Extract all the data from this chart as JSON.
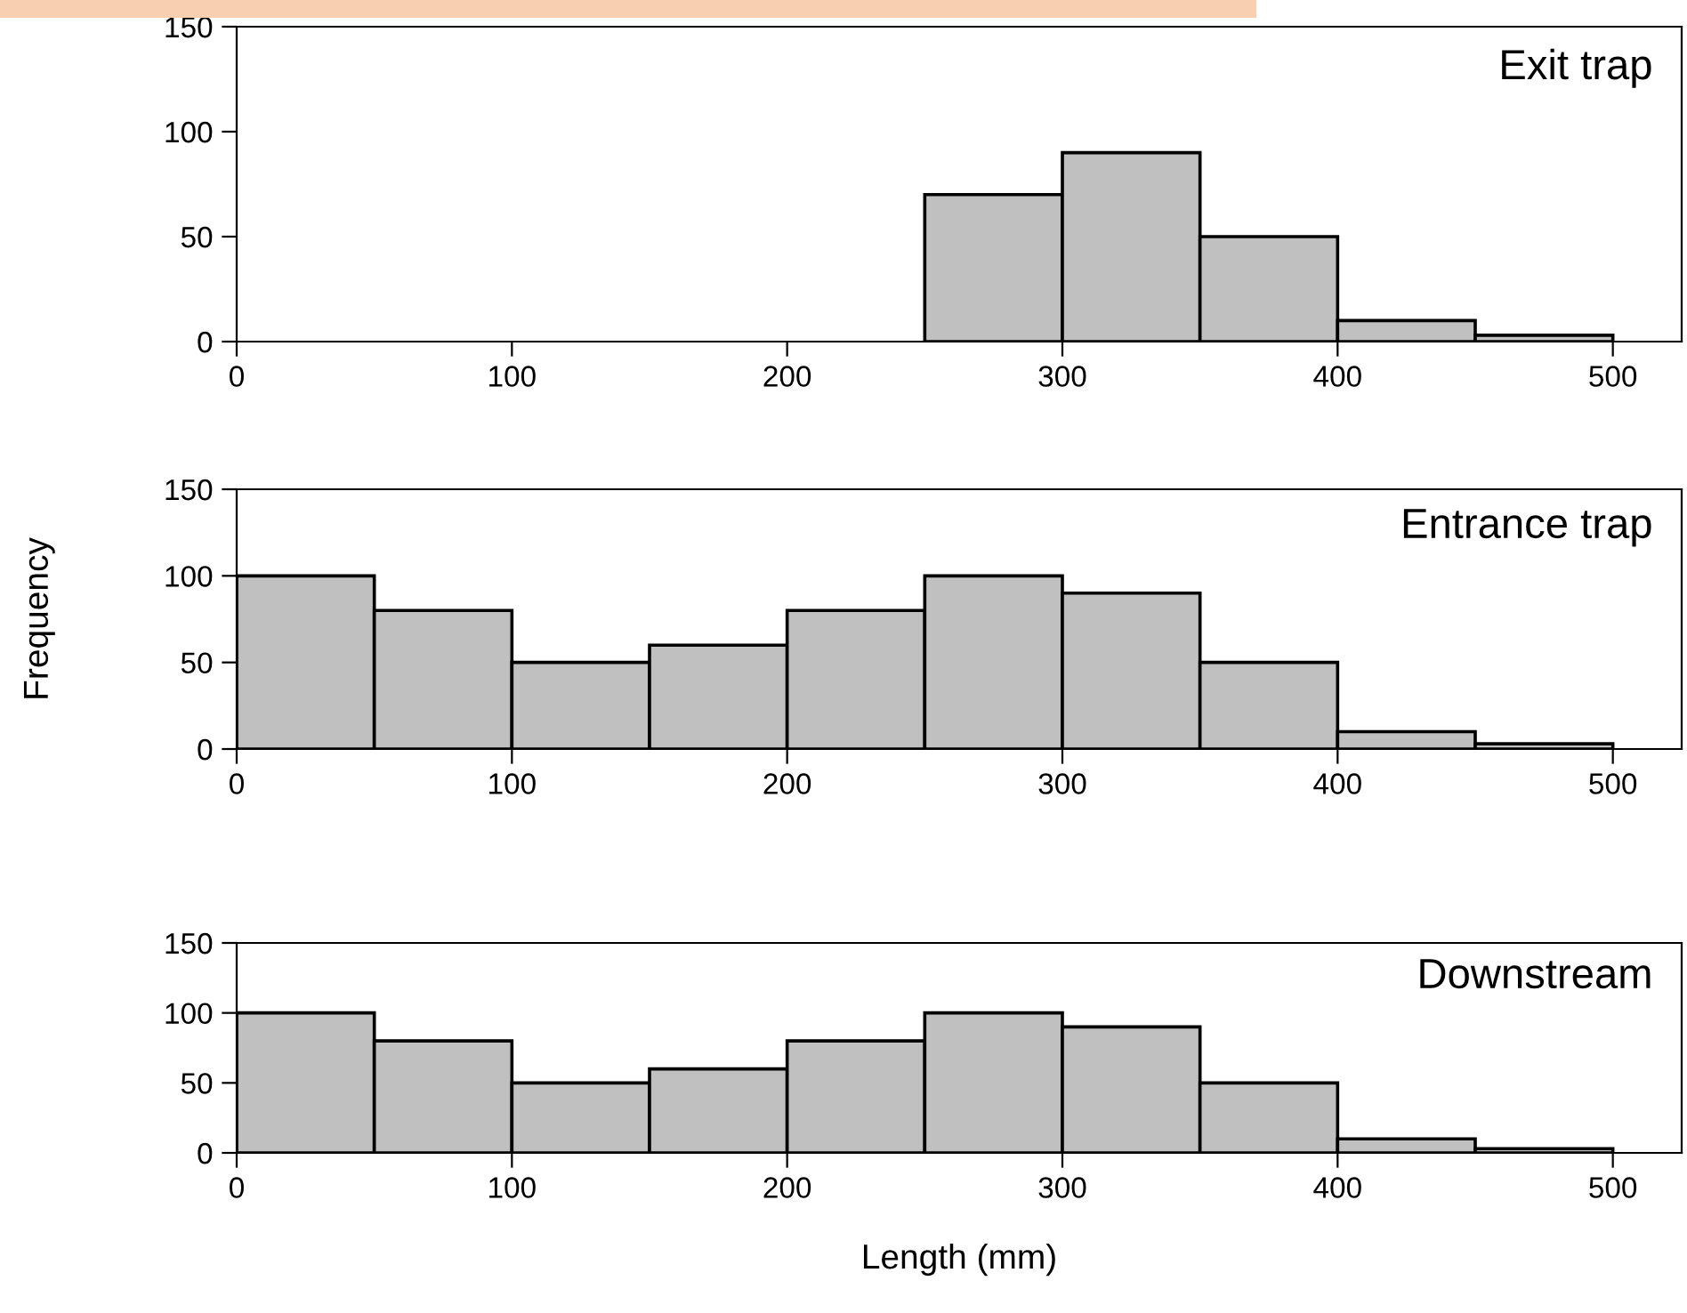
{
  "chart_data": [
    {
      "type": "histogram",
      "title": "Exit trap",
      "bins": [
        250,
        300,
        350,
        400,
        450,
        500
      ],
      "values": [
        70,
        90,
        50,
        10,
        3
      ],
      "color": "#c0c0c0",
      "xlim": [
        0,
        525
      ],
      "xticks": [
        0,
        100,
        200,
        300,
        400,
        500
      ],
      "ylim": [
        0,
        150
      ],
      "yticks": [
        0,
        50,
        100,
        150
      ],
      "grid": false,
      "legend": false
    },
    {
      "type": "histogram",
      "title": "Entrance trap",
      "ylabel": "Frequency",
      "bins": [
        0,
        50,
        100,
        150,
        200,
        250,
        300,
        350,
        400,
        450,
        500
      ],
      "values": [
        100,
        80,
        50,
        60,
        80,
        100,
        90,
        50,
        10,
        3
      ],
      "color": "#c0c0c0",
      "xlim": [
        0,
        525
      ],
      "xticks": [
        0,
        100,
        200,
        300,
        400,
        500
      ],
      "ylim": [
        0,
        150
      ],
      "yticks": [
        0,
        50,
        100,
        150
      ],
      "grid": false,
      "legend": false
    },
    {
      "type": "histogram",
      "title": "Downstream",
      "xlabel": "Length (mm)",
      "bins": [
        0,
        50,
        100,
        150,
        200,
        250,
        300,
        350,
        400,
        450,
        500
      ],
      "values": [
        100,
        80,
        50,
        60,
        80,
        100,
        90,
        50,
        10,
        3
      ],
      "color": "#c0c0c0",
      "xlim": [
        0,
        525
      ],
      "xticks": [
        0,
        100,
        200,
        300,
        400,
        500
      ],
      "ylim": [
        0,
        150
      ],
      "yticks": [
        0,
        50,
        100,
        150
      ],
      "grid": false,
      "legend": false
    }
  ]
}
